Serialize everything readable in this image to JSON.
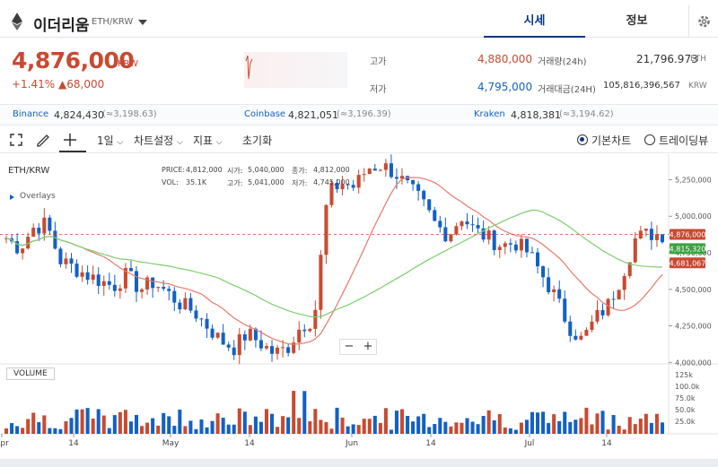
{
  "header": {
    "coin_name": "이더리움",
    "pair": "ETH/KRW",
    "tabs": [
      {
        "label": "시세"
      },
      {
        "label": "정보"
      }
    ]
  },
  "price": {
    "current": "4,876,000",
    "unit": "KRW",
    "change_pct": "+1.41%",
    "change_abs": "▲68,000"
  },
  "stats": {
    "high_label": "고가",
    "high": "4,880,000",
    "low_label": "저가",
    "low": "4,795,000",
    "vol_label": "거래량(24h)",
    "vol": "21,796.973",
    "vol_unit": "ETH",
    "amt_label": "거래대금(24H)",
    "amt": "105,816,396,567",
    "amt_unit": "KRW"
  },
  "exchanges": [
    {
      "name": "Binance",
      "price": "4,824,430",
      "usd": "(≈3,198.63)"
    },
    {
      "name": "Coinbase",
      "price": "4,821,051",
      "usd": "(≈3,196.39)"
    },
    {
      "name": "Kraken",
      "price": "4,818,381",
      "usd": "(≈3,194.62)"
    }
  ],
  "toolbar": {
    "interval": "1일",
    "chart_settings": "차트설정",
    "indicators": "지표",
    "reset": "초기화",
    "basic_chart": "기본차트",
    "tradingview": "트레이딩뷰"
  },
  "chart": {
    "pair_label": "ETH/KRW",
    "overlay_label": "Overlays",
    "ohlc": {
      "price_label": "PRICE:",
      "price": "4,812,000",
      "vol_label": "VOL:",
      "vol": "35.1K",
      "open_label": "시가:",
      "open": "5,040,000",
      "high_label": "고가:",
      "high": "5,041,000",
      "close_label": "종가:",
      "close": "4,812,000",
      "low_label": "저가:",
      "low": "4,745,000"
    },
    "volume_label": "VOLUME",
    "price_ticks": [
      "5,250,000",
      "5,000,000",
      "4,750,000",
      "4,500,000",
      "4,250,000",
      "4,000,000"
    ],
    "volume_ticks": [
      "125k",
      "100.0k",
      "75.0k",
      "50.0k",
      "25.0k"
    ],
    "date_ticks": [
      "Apr",
      "14",
      "May",
      "14",
      "Jun",
      "14",
      "Jul",
      "14"
    ],
    "badges": [
      {
        "text": "4,876,000",
        "color": "#c84a31"
      },
      {
        "text": "4,815,320",
        "color": "#3ba244"
      },
      {
        "text": "4,681,067",
        "color": "#c84a31"
      }
    ],
    "colors": {
      "up": "#c84a31",
      "down": "#1261c4",
      "ma_short": "#e8786a",
      "ma_long": "#7ccf6b"
    }
  },
  "chart_data": {
    "type": "candlestick",
    "y_range": [
      3990000,
      5400000
    ],
    "close_series_approx": [
      4850000,
      4780000,
      4920000,
      4950000,
      4700000,
      4650000,
      4600000,
      4560000,
      4520000,
      4600000,
      4500000,
      4550000,
      4480000,
      4400000,
      4350000,
      4250000,
      4150000,
      4100000,
      4200000,
      4130000,
      4060000,
      4100000,
      4250000,
      4300000,
      5150000,
      5230000,
      5200000,
      5330000,
      5350000,
      5300000,
      5200000,
      5100000,
      4950000,
      4870000,
      5000000,
      4900000,
      4850000,
      4800000,
      4820000,
      4750000,
      4600000,
      4450000,
      4250000,
      4150000,
      4300000,
      4400000,
      4600000,
      4850000,
      4880000,
      4876000
    ]
  }
}
